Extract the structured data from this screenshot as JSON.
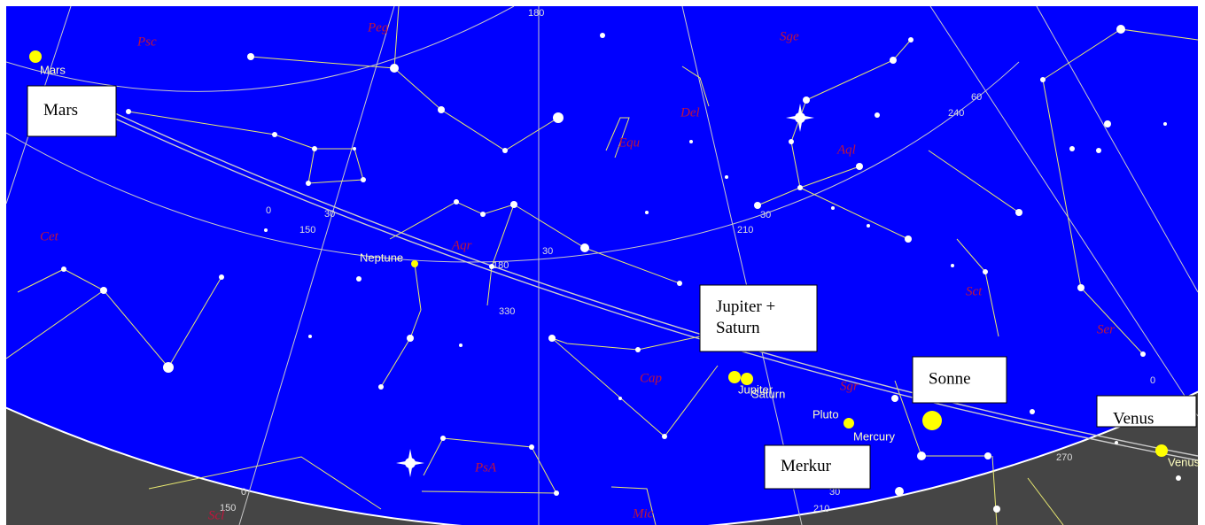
{
  "callouts": [
    {
      "lines": [
        "Mars"
      ]
    },
    {
      "lines": [
        "Jupiter +",
        "Saturn"
      ]
    },
    {
      "lines": [
        "Sonne"
      ]
    },
    {
      "lines": [
        "Venus"
      ]
    },
    {
      "lines": [
        "Merkur"
      ]
    }
  ],
  "planets": [
    "Mars",
    "Neptune",
    "Jupiter",
    "Saturn",
    "Pluto",
    "Mercury",
    "Venus"
  ],
  "constellations": [
    "Psc",
    "Peg",
    "Sge",
    "Del",
    "Equ",
    "Aql",
    "Cet",
    "Aqr",
    "Cap",
    "Sgr",
    "Sct",
    "Ser",
    "PsA",
    "Mic",
    "Scl"
  ],
  "grid_labels": [
    "180",
    "240",
    "60",
    "30",
    "0",
    "150",
    "30",
    "210",
    "30",
    "180",
    "330",
    "270",
    "0",
    "150",
    "210",
    "30",
    "0"
  ]
}
